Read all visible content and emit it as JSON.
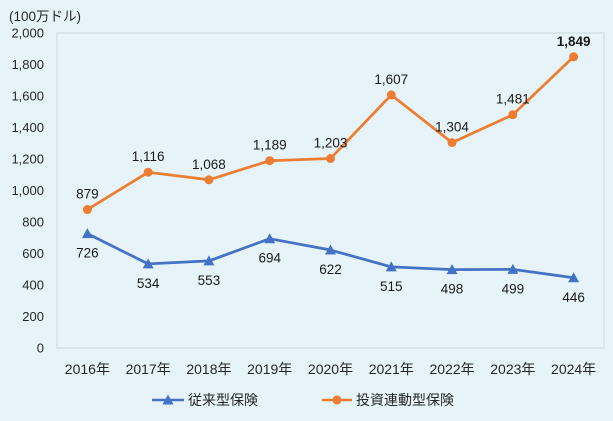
{
  "colors": {
    "background": "#e6f4f9",
    "plot_border": "#d2dbe0",
    "axis_text": "#262626",
    "data_label_text": "#1a1a1a",
    "series_blue": "#4472c4",
    "series_orange": "#ed7d31"
  },
  "chart_data": {
    "type": "line",
    "title": "(100万ドル)",
    "categories": [
      "2016年",
      "2017年",
      "2018年",
      "2019年",
      "2020年",
      "2021年",
      "2022年",
      "2023年",
      "2024年"
    ],
    "series": [
      {
        "name": "従来型保険",
        "color": "#4472c4",
        "marker": "triangle",
        "label_position": "below",
        "emphasize_last_label": false,
        "values": [
          726,
          534,
          553,
          694,
          622,
          515,
          498,
          499,
          446
        ]
      },
      {
        "name": "投資連動型保険",
        "color": "#ed7d31",
        "marker": "circle",
        "label_position": "above",
        "emphasize_last_label": true,
        "values": [
          879,
          1116,
          1068,
          1189,
          1203,
          1607,
          1304,
          1481,
          1849
        ]
      }
    ],
    "ylim": [
      0,
      2000
    ],
    "ytick_step": 200,
    "grid": false,
    "legend_position": "bottom"
  }
}
